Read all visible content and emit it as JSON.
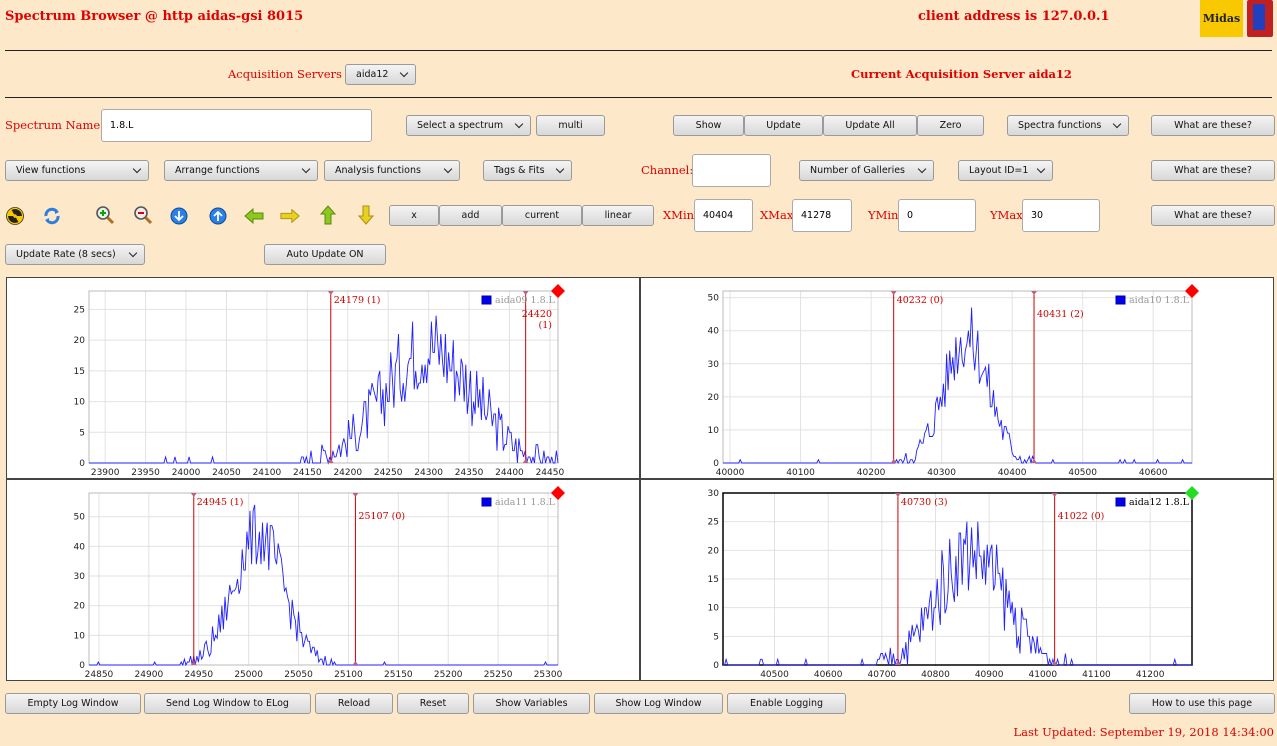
{
  "header": {
    "title": "Spectrum Browser @ http aidas-gsi 8015",
    "client": "client address is 127.0.0.1",
    "logo_text": "Midas"
  },
  "acq": {
    "label": "Acquisition Servers",
    "selected": "aida12",
    "current": "Current Acquisition Server aida12"
  },
  "row1": {
    "spectrum_label": "Spectrum Name:",
    "spectrum_value": "1.8.L",
    "select_spectrum": "Select a spectrum",
    "multi": "multi",
    "show": "Show",
    "update": "Update",
    "update_all": "Update All",
    "zero": "Zero",
    "spectra_functions": "Spectra functions",
    "what": "What are these?"
  },
  "row2": {
    "view": "View functions",
    "arrange": "Arrange functions",
    "analysis": "Analysis functions",
    "tags": "Tags & Fits",
    "channel_label": "Channel:",
    "channel_value": "",
    "galleries": "Number of Galleries",
    "layout": "Layout ID=1",
    "what": "What are these?"
  },
  "row3": {
    "icons": [
      "radiation-icon",
      "refresh-icon",
      "zoom-in-icon",
      "zoom-out-icon",
      "arrow-down-circle-icon",
      "arrow-up-circle-icon",
      "arrow-left-icon",
      "arrow-right-icon",
      "arrow-up-icon",
      "arrow-down-icon"
    ],
    "x": "x",
    "add": "add",
    "current": "current",
    "linear": "linear",
    "xmin_label": "XMin",
    "xmin": "40404",
    "xmax_label": "XMax",
    "xmax": "41278",
    "ymin_label": "YMin",
    "ymin": "0",
    "ymax_label": "YMax",
    "ymax": "30",
    "what": "What are these?"
  },
  "row4": {
    "rate": "Update Rate (8 secs)",
    "auto": "Auto Update ON"
  },
  "colors": {
    "accent": "#e00000",
    "bg": "#fde9c9",
    "series": "#2020ff",
    "marker_red": "#ff0000",
    "marker_green": "#22dd22"
  },
  "chart_data": [
    {
      "type": "line",
      "legend": "aida09 1.8.L",
      "legend_active": false,
      "status": "red",
      "xlim": [
        23880,
        24460
      ],
      "ylim": [
        0,
        28
      ],
      "xticks": [
        23900,
        23950,
        24000,
        24050,
        24100,
        24150,
        24200,
        24250,
        24300,
        24350,
        24400,
        24450
      ],
      "yticks": [
        0,
        5,
        10,
        15,
        20,
        25
      ],
      "peak": {
        "center": 24300,
        "sigma": 55,
        "height": 19
      },
      "markers": [
        {
          "x": 24179,
          "label": "24179 (1)"
        },
        {
          "x": 24420,
          "label": "24420 (1)"
        }
      ]
    },
    {
      "type": "line",
      "legend": "aida10 1.8.L",
      "legend_active": false,
      "status": "red",
      "xlim": [
        39990,
        40655
      ],
      "ylim": [
        0,
        52
      ],
      "xticks": [
        40000,
        40100,
        40200,
        40300,
        40400,
        40500,
        40600
      ],
      "yticks": [
        0,
        10,
        20,
        30,
        40,
        50
      ],
      "peak": {
        "center": 40335,
        "sigma": 32,
        "height": 38
      },
      "markers": [
        {
          "x": 40232,
          "label": "40232 (0)"
        },
        {
          "x": 40431,
          "label": "40431 (2)"
        }
      ]
    },
    {
      "type": "line",
      "legend": "aida11 1.8.L",
      "legend_active": false,
      "status": "red",
      "xlim": [
        24840,
        25310
      ],
      "ylim": [
        0,
        58
      ],
      "xticks": [
        24850,
        24900,
        24950,
        25000,
        25050,
        25100,
        25150,
        25200,
        25250,
        25300
      ],
      "yticks": [
        0,
        10,
        20,
        30,
        40,
        50
      ],
      "peak": {
        "center": 25010,
        "sigma": 25,
        "height": 44
      },
      "markers": [
        {
          "x": 24945,
          "label": "24945 (1)"
        },
        {
          "x": 25107,
          "label": "25107 (0)"
        }
      ]
    },
    {
      "type": "line",
      "legend": "aida12 1.8.L",
      "legend_active": true,
      "status": "green",
      "xlim": [
        40404,
        41278
      ],
      "ylim": [
        0,
        30
      ],
      "xticks": [
        40500,
        40600,
        40700,
        40800,
        40900,
        41000,
        41100,
        41200
      ],
      "yticks": [
        0,
        5,
        10,
        15,
        20,
        25,
        30
      ],
      "peak": {
        "center": 40865,
        "sigma": 62,
        "height": 20
      },
      "markers": [
        {
          "x": 40730,
          "label": "40730 (3)"
        },
        {
          "x": 41022,
          "label": "41022 (0)"
        }
      ]
    }
  ],
  "footer": {
    "buttons": [
      "Empty Log Window",
      "Send Log Window to ELog",
      "Reload",
      "Reset",
      "Show Variables",
      "Show Log Window",
      "Enable Logging"
    ],
    "howto": "How to use this page",
    "updated": "Last Updated: September 19, 2018 14:34:00"
  }
}
